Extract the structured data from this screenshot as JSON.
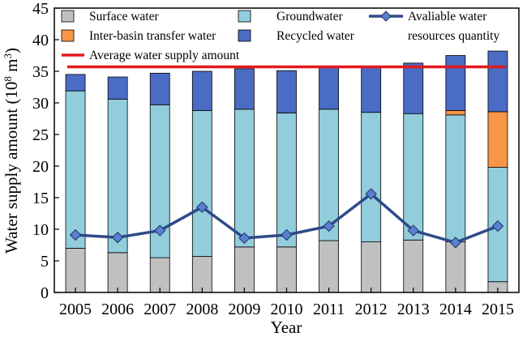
{
  "chart_data": {
    "type": "bar",
    "title": "",
    "xlabel": "Year",
    "ylabel": "Water supply amount (10",
    "ylabel_sup": "8",
    "ylabel_unit": " m",
    "ylabel_unit_sup": "3",
    "ylabel_close": ")",
    "ylim": [
      0,
      45
    ],
    "yticks": [
      "0",
      "5",
      "10",
      "15",
      "20",
      "25",
      "30",
      "35",
      "40",
      "45"
    ],
    "categories": [
      "2005",
      "2006",
      "2007",
      "2008",
      "2009",
      "2010",
      "2011",
      "2012",
      "2013",
      "2014",
      "2015"
    ],
    "stacked": true,
    "series": [
      {
        "name": "Surface water",
        "color": "#c0c0c0",
        "values": [
          7.0,
          6.3,
          5.5,
          5.7,
          7.2,
          7.2,
          8.2,
          8.0,
          8.3,
          8.0,
          1.7
        ]
      },
      {
        "name": "Groundwater",
        "color": "#92cddc",
        "values": [
          24.9,
          24.3,
          24.2,
          23.1,
          21.8,
          21.2,
          20.8,
          20.5,
          20.0,
          20.1,
          18.1
        ]
      },
      {
        "name": "Inter-basin transfer water",
        "color": "#f79646",
        "values": [
          0,
          0,
          0,
          0,
          0,
          0,
          0,
          0,
          0,
          0.7,
          8.8
        ]
      },
      {
        "name": "Recycled water",
        "color": "#4a6cc4",
        "values": [
          2.6,
          3.5,
          5.0,
          6.2,
          6.4,
          6.7,
          6.8,
          7.3,
          8.0,
          8.7,
          9.6
        ]
      }
    ],
    "line_series": [
      {
        "name": "Avaliable water resources quantity",
        "name_line1": "Avaliable water",
        "name_line2": "resources quantity",
        "color": "#2e4a8a",
        "marker_color": "#5b7fd0",
        "values": [
          9.1,
          8.7,
          9.8,
          13.5,
          8.6,
          9.1,
          10.5,
          15.6,
          9.8,
          7.9,
          10.5
        ]
      }
    ],
    "reference_lines": [
      {
        "name": "Average water supply amount",
        "color": "#e31a1c",
        "value": 35.7
      }
    ],
    "legend_position": "top",
    "grid": false
  }
}
